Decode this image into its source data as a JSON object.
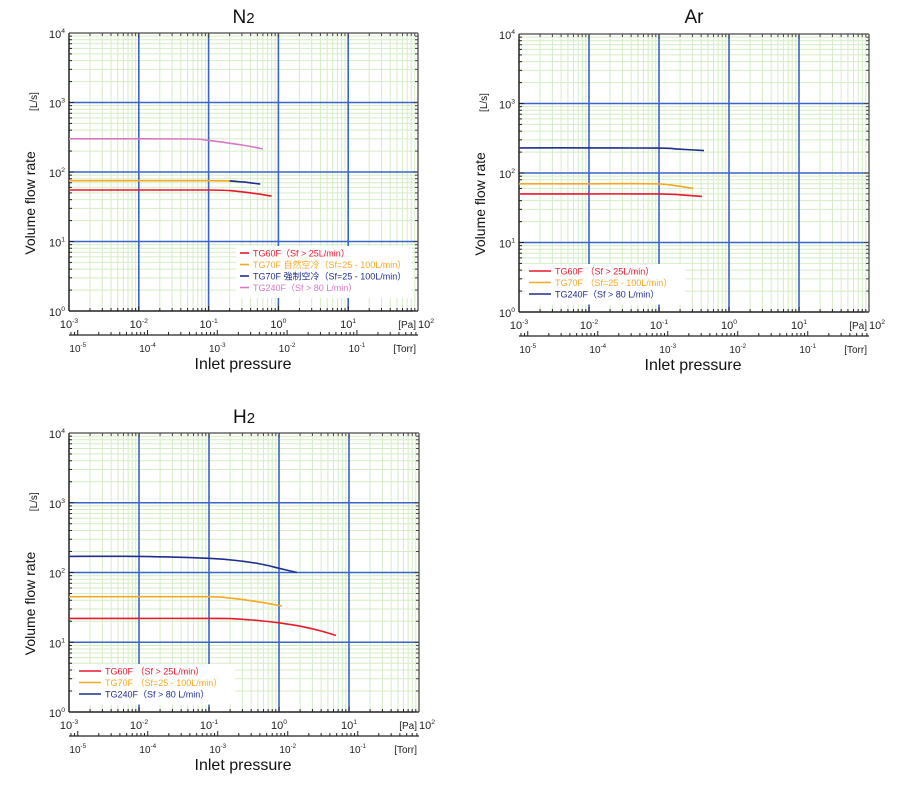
{
  "chart_data": [
    {
      "id": "n2",
      "type": "line",
      "title": "N2",
      "title_main": "N",
      "title_sub": "2",
      "xlabel": "Inlet pressure",
      "ylabel": "Volume flow rate",
      "yunit": "[L/s]",
      "xunit_primary": "[Pa]",
      "xunit_secondary": "[Torr]",
      "xscale": "log",
      "yscale": "log",
      "xlim": [
        0.001,
        100
      ],
      "ylim": [
        1,
        10000
      ],
      "x_ticks": [
        {
          "base": "10",
          "exp": "-3"
        },
        {
          "base": "10",
          "exp": "-2"
        },
        {
          "base": "10",
          "exp": "-1"
        },
        {
          "base": "10",
          "exp": "0"
        },
        {
          "base": "10",
          "exp": "1"
        },
        {
          "base": "10",
          "exp": "2"
        }
      ],
      "y_ticks": [
        {
          "base": "10",
          "exp": "0"
        },
        {
          "base": "10",
          "exp": "1"
        },
        {
          "base": "10",
          "exp": "2"
        },
        {
          "base": "10",
          "exp": "3"
        },
        {
          "base": "10",
          "exp": "4"
        }
      ],
      "torr_ticks": [
        {
          "base": "10",
          "exp": "-5"
        },
        {
          "base": "10",
          "exp": "-4"
        },
        {
          "base": "10",
          "exp": "-3"
        },
        {
          "base": "10",
          "exp": "-2"
        },
        {
          "base": "10",
          "exp": "-1"
        }
      ],
      "grid": true,
      "legend_position": "lower-right",
      "series": [
        {
          "name": "TG60F（Sf > 25L/min）",
          "color": "#e8192c",
          "points": [
            [
              0.001,
              55
            ],
            [
              0.01,
              55
            ],
            [
              0.1,
              55
            ],
            [
              0.2,
              54
            ],
            [
              0.4,
              50
            ],
            [
              0.8,
              45
            ]
          ]
        },
        {
          "name": "TG70F 自然空冷（Sf=25 - 100L/min）",
          "color": "#f7a823",
          "points": [
            [
              0.001,
              75
            ],
            [
              0.01,
              75
            ],
            [
              0.1,
              75
            ],
            [
              0.25,
              74
            ]
          ]
        },
        {
          "name": "TG70F 強制空冷（Sf=25 - 100L/min）",
          "color": "#1f2e8c",
          "points": [
            [
              0.2,
              74.5
            ],
            [
              0.35,
              71
            ],
            [
              0.55,
              67
            ]
          ]
        },
        {
          "name": "TG240F（Sf > 80 L/min）",
          "color": "#d879c4",
          "points": [
            [
              0.001,
              300
            ],
            [
              0.01,
              300
            ],
            [
              0.06,
              298
            ],
            [
              0.1,
              285
            ],
            [
              0.3,
              245
            ],
            [
              0.6,
              215
            ]
          ]
        }
      ]
    },
    {
      "id": "ar",
      "type": "line",
      "title": "Ar",
      "title_main": "Ar",
      "title_sub": "",
      "xlabel": "Inlet pressure",
      "ylabel": "Volume flow rate",
      "yunit": "[L/s]",
      "xunit_primary": "[Pa]",
      "xunit_secondary": "[Torr]",
      "xscale": "log",
      "yscale": "log",
      "xlim": [
        0.001,
        100
      ],
      "ylim": [
        1,
        10000
      ],
      "x_ticks": [
        {
          "base": "10",
          "exp": "-3"
        },
        {
          "base": "10",
          "exp": "-2"
        },
        {
          "base": "10",
          "exp": "-1"
        },
        {
          "base": "10",
          "exp": "0"
        },
        {
          "base": "10",
          "exp": "1"
        },
        {
          "base": "10",
          "exp": "2"
        }
      ],
      "y_ticks": [
        {
          "base": "10",
          "exp": "0"
        },
        {
          "base": "10",
          "exp": "1"
        },
        {
          "base": "10",
          "exp": "2"
        },
        {
          "base": "10",
          "exp": "3"
        },
        {
          "base": "10",
          "exp": "4"
        }
      ],
      "torr_ticks": [
        {
          "base": "10",
          "exp": "-5"
        },
        {
          "base": "10",
          "exp": "-4"
        },
        {
          "base": "10",
          "exp": "-3"
        },
        {
          "base": "10",
          "exp": "-2"
        },
        {
          "base": "10",
          "exp": "-1"
        }
      ],
      "grid": true,
      "legend_position": "lower-left",
      "series": [
        {
          "name": "TG60F （Sf > 25L/min）",
          "color": "#e8192c",
          "points": [
            [
              0.001,
              50
            ],
            [
              0.01,
              50
            ],
            [
              0.1,
              50
            ],
            [
              0.2,
              48.5
            ],
            [
              0.41,
              46
            ]
          ]
        },
        {
          "name": "TG70F （Sf=25 - 100L/min）",
          "color": "#f7a823",
          "points": [
            [
              0.001,
              70
            ],
            [
              0.01,
              70
            ],
            [
              0.08,
              70
            ],
            [
              0.15,
              67
            ],
            [
              0.31,
              60
            ]
          ]
        },
        {
          "name": "TG240F（Sf > 80 L/min）",
          "color": "#1f2e8c",
          "points": [
            [
              0.001,
              230
            ],
            [
              0.01,
              230
            ],
            [
              0.1,
              228
            ],
            [
              0.2,
              220
            ],
            [
              0.44,
              210
            ]
          ]
        }
      ]
    },
    {
      "id": "h2",
      "type": "line",
      "title": "H2",
      "title_main": "H",
      "title_sub": "2",
      "xlabel": "Inlet pressure",
      "ylabel": "Volume flow rate",
      "yunit": "[L/s]",
      "xunit_primary": "[Pa]",
      "xunit_secondary": "[Torr]",
      "xscale": "log",
      "yscale": "log",
      "xlim": [
        0.001,
        100
      ],
      "ylim": [
        1,
        10000
      ],
      "x_ticks": [
        {
          "base": "10",
          "exp": "-3"
        },
        {
          "base": "10",
          "exp": "-2"
        },
        {
          "base": "10",
          "exp": "-1"
        },
        {
          "base": "10",
          "exp": "0"
        },
        {
          "base": "10",
          "exp": "1"
        },
        {
          "base": "10",
          "exp": "2"
        }
      ],
      "y_ticks": [
        {
          "base": "10",
          "exp": "0"
        },
        {
          "base": "10",
          "exp": "1"
        },
        {
          "base": "10",
          "exp": "2"
        },
        {
          "base": "10",
          "exp": "3"
        },
        {
          "base": "10",
          "exp": "4"
        }
      ],
      "torr_ticks": [
        {
          "base": "10",
          "exp": "-5"
        },
        {
          "base": "10",
          "exp": "-4"
        },
        {
          "base": "10",
          "exp": "-3"
        },
        {
          "base": "10",
          "exp": "-2"
        },
        {
          "base": "10",
          "exp": "-1"
        }
      ],
      "grid": true,
      "legend_position": "lower-left",
      "series": [
        {
          "name": "TG60F （Sf > 25L/min）",
          "color": "#e8192c",
          "points": [
            [
              0.001,
              22
            ],
            [
              0.01,
              22
            ],
            [
              0.1,
              22
            ],
            [
              0.2,
              21.8
            ],
            [
              0.5,
              20.5
            ],
            [
              1,
              19
            ],
            [
              2,
              17
            ],
            [
              4,
              14.5
            ],
            [
              6.5,
              12.5
            ]
          ]
        },
        {
          "name": "TG70F （Sf=25 - 100L/min）",
          "color": "#f7a823",
          "points": [
            [
              0.001,
              45
            ],
            [
              0.01,
              45
            ],
            [
              0.1,
              45
            ],
            [
              0.2,
              43
            ],
            [
              0.5,
              38
            ],
            [
              1.1,
              33
            ]
          ]
        },
        {
          "name": "TG240F（Sf > 80 L/min）",
          "color": "#1f2e8c",
          "points": [
            [
              0.001,
              170
            ],
            [
              0.01,
              170
            ],
            [
              0.1,
              160
            ],
            [
              0.3,
              145
            ],
            [
              0.6,
              130
            ],
            [
              1,
              115
            ],
            [
              1.8,
              100
            ]
          ]
        }
      ]
    }
  ]
}
